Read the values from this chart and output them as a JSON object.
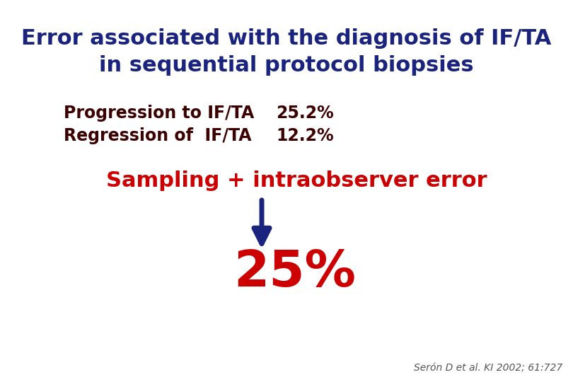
{
  "title_line1": "Error associated with the diagnosis of IF/TA",
  "title_line2": "in sequential protocol biopsies",
  "title_color": "#1a237e",
  "title_fontsize": 22,
  "row1_label": "Progression to IF/TA",
  "row1_value": "25.2%",
  "row2_label": "Regression of  IF/TA",
  "row2_value": "12.2%",
  "body_color": "#3d0000",
  "body_fontsize": 17,
  "sampling_text": "Sampling + intraobserver error",
  "sampling_color": "#cc0000",
  "sampling_fontsize": 22,
  "result_text": "25%",
  "result_color": "#cc0000",
  "result_fontsize": 52,
  "arrow_color": "#1a237e",
  "citation": "Serón D et al. KI 2002; 61:727",
  "citation_color": "#555555",
  "citation_fontsize": 10,
  "background_color": "#ffffff"
}
